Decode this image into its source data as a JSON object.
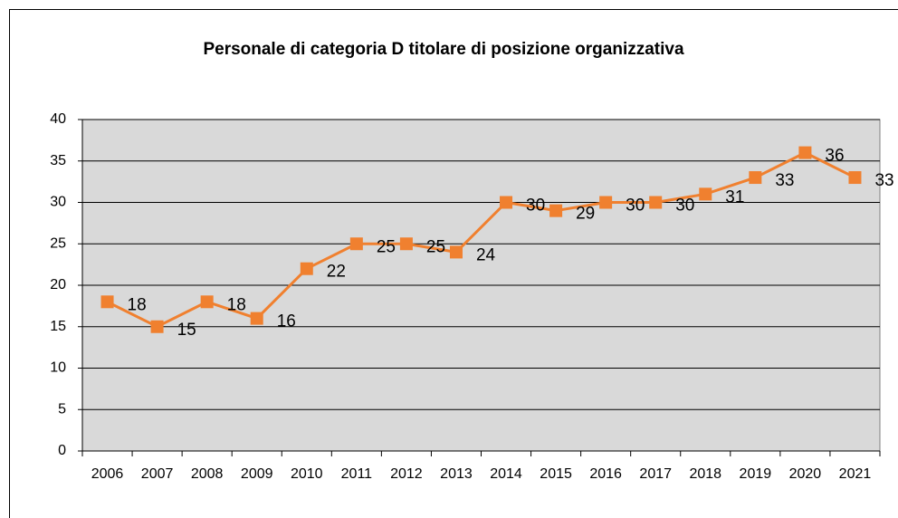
{
  "chart_data": {
    "type": "line",
    "title": "Personale di categoria D titolare di posizione organizzativa",
    "categories": [
      "2006",
      "2007",
      "2008",
      "2009",
      "2010",
      "2011",
      "2012",
      "2013",
      "2014",
      "2015",
      "2016",
      "2017",
      "2018",
      "2019",
      "2020",
      "2021"
    ],
    "values": [
      18,
      15,
      18,
      16,
      22,
      25,
      25,
      24,
      30,
      29,
      30,
      30,
      31,
      33,
      36,
      33
    ],
    "color": "#f0802f",
    "ylim": [
      0,
      40
    ],
    "yticks": [
      0,
      5,
      10,
      15,
      20,
      25,
      30,
      35,
      40
    ],
    "grid": true
  }
}
